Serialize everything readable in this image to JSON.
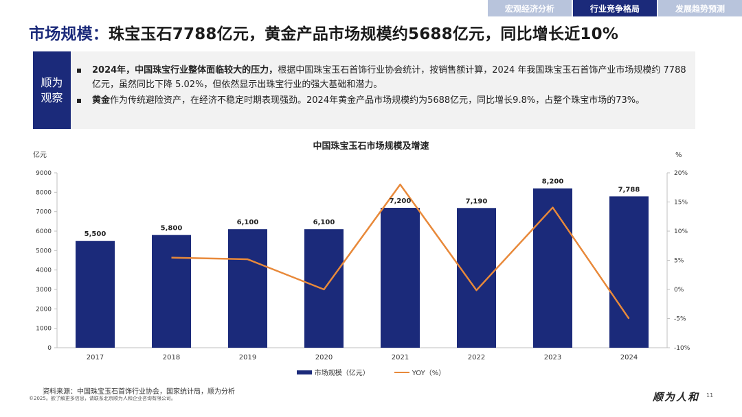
{
  "nav": {
    "tabs": [
      {
        "label": "宏观经济分析"
      },
      {
        "label": "行业竞争格局"
      },
      {
        "label": "发展趋势预测"
      }
    ]
  },
  "header": {
    "title_highlight": "市场规模：",
    "title_rest": "珠宝玉石7788亿元，黄金产品市场规模约5688亿元，同比增长近10%"
  },
  "observation": {
    "label": "顺为观察",
    "bullets": [
      {
        "bold": "2024年，中国珠宝行业整体面临较大的压力，",
        "text": "根据中国珠宝玉石首饰行业协会统计，按销售额计算，2024 年我国珠宝玉石首饰产业市场规模约 7788 亿元，虽然同比下降 5.02%，但依然显示出珠宝行业的强大基础和潜力。"
      },
      {
        "bold": "黄金",
        "text": "作为传统避险资产，在经济不稳定时期表现强劲。2024年黄金产品市场规模约为5688亿元，同比增长9.8%，占整个珠宝市场的73%。"
      }
    ]
  },
  "chart_data": {
    "type": "bar",
    "title": "中国珠宝玉石市场规模及增速",
    "left_unit": "亿元",
    "right_unit": "%",
    "categories": [
      "2017",
      "2018",
      "2019",
      "2020",
      "2021",
      "2022",
      "2023",
      "2024"
    ],
    "series": [
      {
        "name": "市场规模（亿元）",
        "type": "bar",
        "axis": "left",
        "color": "#1b2a7a",
        "values": [
          5500,
          5800,
          6100,
          6100,
          7200,
          7190,
          8200,
          7788
        ],
        "labels": [
          "5,500",
          "5,800",
          "6,100",
          "6,100",
          "7,200",
          "7,190",
          "8,200",
          "7,788"
        ]
      },
      {
        "name": "YOY（%）",
        "type": "line",
        "axis": "right",
        "color": "#e8893a",
        "values": [
          null,
          5.45,
          5.17,
          0.0,
          18.0,
          -0.14,
          14.05,
          -5.02
        ]
      }
    ],
    "ylim_left": [
      0,
      9000
    ],
    "yticks_left": [
      "0",
      "1000",
      "2000",
      "3000",
      "4000",
      "5000",
      "6000",
      "7000",
      "8000",
      "9000"
    ],
    "ylim_right": [
      -10,
      20
    ],
    "yticks_right": [
      "-10%",
      "-5%",
      "0%",
      "5%",
      "10%",
      "15%",
      "20%"
    ],
    "grid": false,
    "legend": "bottom"
  },
  "footer": {
    "source": "资料来源：中国珠宝玉石首饰行业协会，国家统计局，顺为分析",
    "copyright": "©2025。欲了解更多信息，请联系北京顺为人和企业咨询有限公司。",
    "logo_text": "顺为人和",
    "page": "11"
  }
}
